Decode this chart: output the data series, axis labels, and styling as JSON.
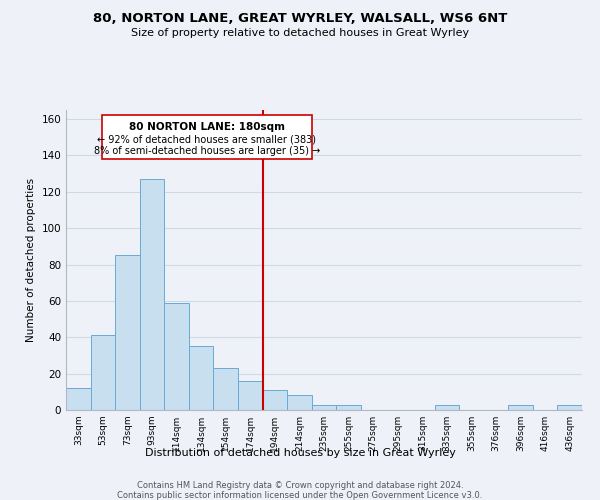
{
  "title": "80, NORTON LANE, GREAT WYRLEY, WALSALL, WS6 6NT",
  "subtitle": "Size of property relative to detached houses in Great Wyrley",
  "xlabel": "Distribution of detached houses by size in Great Wyrley",
  "ylabel": "Number of detached properties",
  "bar_labels": [
    "33sqm",
    "53sqm",
    "73sqm",
    "93sqm",
    "114sqm",
    "134sqm",
    "154sqm",
    "174sqm",
    "194sqm",
    "214sqm",
    "235sqm",
    "255sqm",
    "275sqm",
    "295sqm",
    "315sqm",
    "335sqm",
    "355sqm",
    "376sqm",
    "396sqm",
    "416sqm",
    "436sqm"
  ],
  "bar_heights": [
    12,
    41,
    85,
    127,
    59,
    35,
    23,
    16,
    11,
    8,
    3,
    3,
    0,
    0,
    0,
    3,
    0,
    0,
    3,
    0,
    3
  ],
  "bar_color": "#c8dff0",
  "bar_edge_color": "#6aaad4",
  "vline_x": 7.5,
  "vline_color": "#cc0000",
  "annotation_title": "80 NORTON LANE: 180sqm",
  "annotation_line1": "← 92% of detached houses are smaller (383)",
  "annotation_line2": "8% of semi-detached houses are larger (35) →",
  "ylim": [
    0,
    165
  ],
  "yticks": [
    0,
    20,
    40,
    60,
    80,
    100,
    120,
    140,
    160
  ],
  "footer_line1": "Contains HM Land Registry data © Crown copyright and database right 2024.",
  "footer_line2": "Contains public sector information licensed under the Open Government Licence v3.0.",
  "background_color": "#eef2f8",
  "grid_color": "#d0d8e8"
}
